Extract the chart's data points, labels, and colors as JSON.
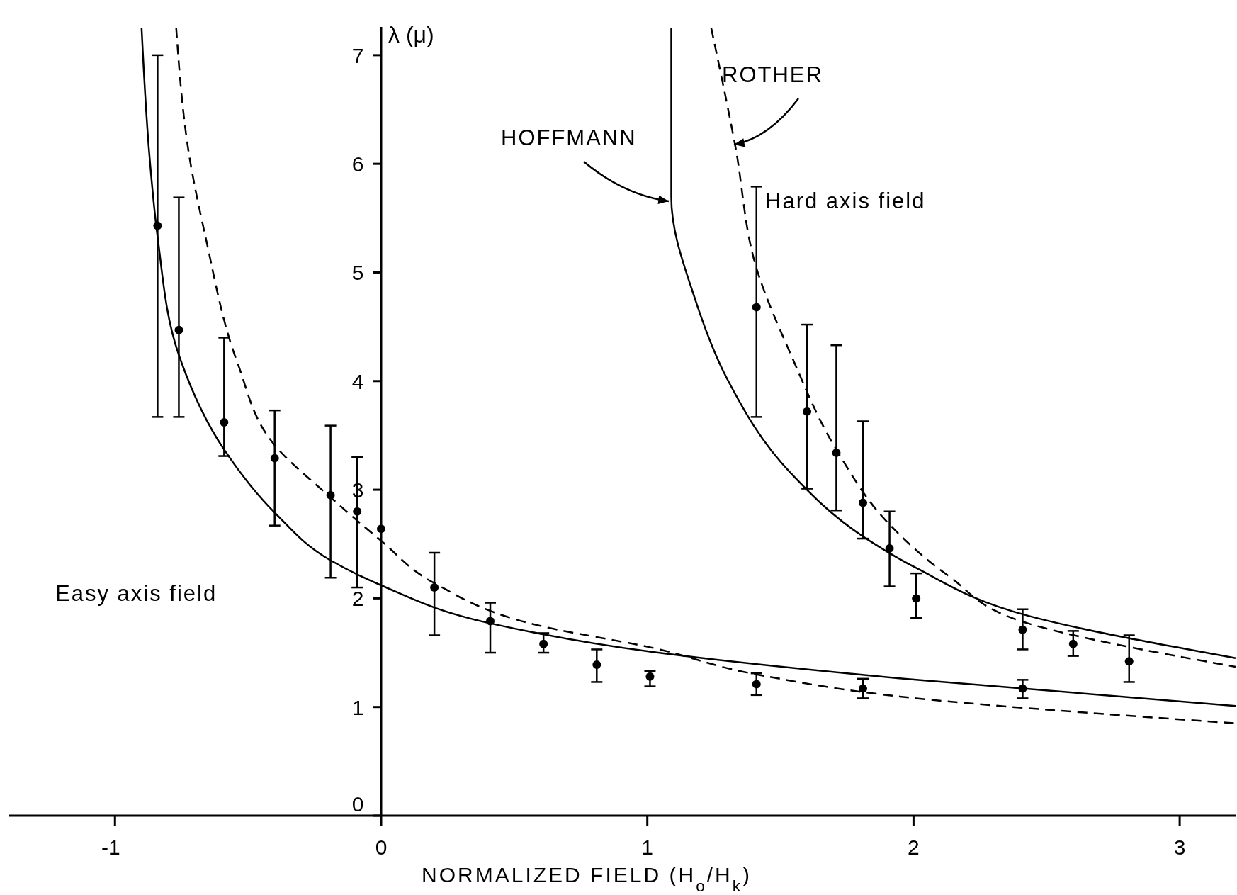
{
  "chart_data": {
    "type": "scatter",
    "xlabel": "NORMALIZED FIELD  (H$_{o}$/H$_{k}$)",
    "ylabel": "λ (μ)",
    "xlim": [
      -1.4,
      3.21
    ],
    "ylim": [
      0,
      7.26
    ],
    "xticks": [
      -1,
      0,
      1,
      2,
      3
    ],
    "yticks": [
      0,
      1,
      2,
      3,
      4,
      5,
      6,
      7
    ],
    "grid": false,
    "marker": "circle",
    "annotations": [
      "Easy axis field",
      "Hard axis field"
    ],
    "series": [
      {
        "color": "#000000",
        "x": [
          -0.84,
          -0.76,
          -0.59,
          -0.4,
          -0.19,
          -0.09,
          0,
          0.2,
          0.41,
          0.61,
          0.81,
          1.01,
          1.41,
          1.81,
          2.41
        ],
        "values": [
          5.43,
          4.47,
          3.62,
          3.29,
          2.95,
          2.8,
          2.64,
          2.1,
          1.79,
          1.58,
          1.39,
          1.28,
          1.21,
          1.17,
          1.17
        ],
        "errors": [
          [
            3.67,
            7.0
          ],
          [
            3.67,
            5.69
          ],
          [
            3.31,
            4.4
          ],
          [
            2.67,
            3.73
          ],
          [
            2.19,
            3.59
          ],
          [
            2.1,
            3.3
          ],
          null,
          [
            1.66,
            2.42
          ],
          [
            1.5,
            1.96
          ],
          [
            1.5,
            1.68
          ],
          [
            1.23,
            1.53
          ],
          [
            1.19,
            1.33
          ],
          [
            1.11,
            1.31
          ],
          [
            1.08,
            1.26
          ],
          [
            1.08,
            1.25
          ]
        ]
      },
      {
        "color": "#000000",
        "x": [
          1.41,
          1.6,
          1.71,
          1.81,
          1.91,
          2.01,
          2.41,
          2.6,
          2.81
        ],
        "values": [
          4.68,
          3.72,
          3.34,
          2.88,
          2.46,
          2.0,
          1.71,
          1.58,
          1.42
        ],
        "errors": [
          [
            3.67,
            5.79
          ],
          [
            3.01,
            4.52
          ],
          [
            2.81,
            4.33
          ],
          [
            2.55,
            3.63
          ],
          [
            2.11,
            2.8
          ],
          [
            1.82,
            2.23
          ],
          [
            1.53,
            1.9
          ],
          [
            1.47,
            1.7
          ],
          [
            1.23,
            1.66
          ]
        ]
      },
      {
        "name": "HOFFMANN",
        "type": "line",
        "line_style": "solid",
        "marker": "none",
        "color": "#000000",
        "x": [
          1.09,
          1.09,
          1.18,
          1.3,
          1.54,
          1.81,
          2.01,
          2.43,
          3.21
        ],
        "values": [
          7.25,
          5.69,
          4.75,
          4.02,
          3.15,
          2.57,
          2.28,
          1.84,
          1.45
        ]
      },
      {
        "name": "ROTHER",
        "type": "line",
        "line_style": "dashed",
        "marker": "none",
        "color": "#000000",
        "x": [
          1.24,
          1.33,
          1.41,
          1.54,
          1.71,
          1.91,
          2.13,
          2.43,
          3.21
        ],
        "values": [
          7.25,
          6.17,
          5.04,
          4.24,
          3.37,
          2.68,
          2.21,
          1.77,
          1.37
        ]
      },
      {
        "type": "line",
        "line_style": "solid",
        "marker": "none",
        "color": "#000000",
        "x": [
          -0.9,
          -0.87,
          -0.84,
          -0.76,
          -0.59,
          -0.4,
          -0.19,
          0,
          0.41,
          1.01,
          2.01,
          3.21
        ],
        "values": [
          7.25,
          6.06,
          5.33,
          4.24,
          3.37,
          2.79,
          2.35,
          2.12,
          1.77,
          1.51,
          1.25,
          1.01
        ]
      },
      {
        "type": "line",
        "line_style": "dashed",
        "marker": "none",
        "color": "#000000",
        "x": [
          -0.77,
          -0.72,
          -0.66,
          -0.54,
          -0.4,
          -0.19,
          0,
          0.2,
          0.61,
          1.01,
          1.41,
          2.01,
          3.21
        ],
        "values": [
          7.25,
          6.06,
          5.33,
          4.17,
          3.41,
          2.93,
          2.53,
          2.14,
          1.74,
          1.55,
          1.3,
          1.08,
          0.85
        ]
      }
    ]
  }
}
